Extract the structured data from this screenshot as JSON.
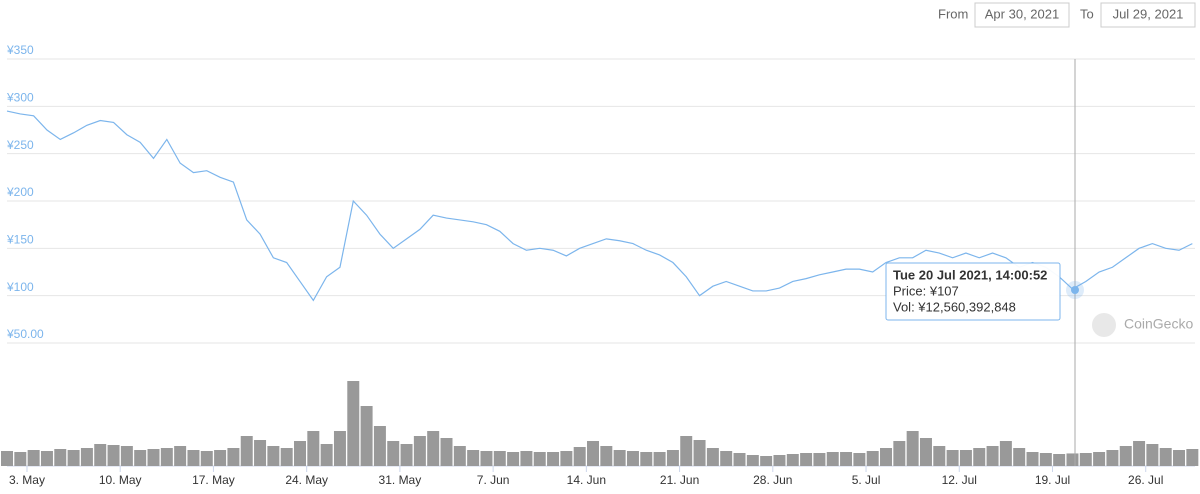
{
  "controls": {
    "from_label": "From",
    "from_date": "Apr 30, 2021",
    "to_label": "To",
    "to_date": "Jul 29, 2021"
  },
  "watermark": "CoinGecko",
  "tooltip": {
    "title": "Tue 20 Jul 2021, 14:00:52",
    "price": "Price: ¥107",
    "volume": "Vol: ¥12,560,392,848"
  },
  "chart_data": {
    "type": "line",
    "xlim": [
      0,
      89.2
    ],
    "xticks": [
      {
        "value": 1.5,
        "label": "3. May"
      },
      {
        "value": 8.5,
        "label": "10. May"
      },
      {
        "value": 15.5,
        "label": "17. May"
      },
      {
        "value": 22.5,
        "label": "24. May"
      },
      {
        "value": 29.5,
        "label": "31. May"
      },
      {
        "value": 36.5,
        "label": "7. Jun"
      },
      {
        "value": 43.5,
        "label": "14. Jun"
      },
      {
        "value": 50.5,
        "label": "21. Jun"
      },
      {
        "value": 57.5,
        "label": "28. Jun"
      },
      {
        "value": 64.5,
        "label": "5. Jul"
      },
      {
        "value": 71.5,
        "label": "12. Jul"
      },
      {
        "value": 78.5,
        "label": "19. Jul"
      },
      {
        "value": 85.5,
        "label": "26. Jul"
      }
    ],
    "ylim": [
      50,
      350
    ],
    "yticks": [
      {
        "value": 350,
        "label": "¥350"
      },
      {
        "value": 300,
        "label": "¥300"
      },
      {
        "value": 250,
        "label": "¥250"
      },
      {
        "value": 200,
        "label": "¥200"
      },
      {
        "value": 150,
        "label": "¥150"
      },
      {
        "value": 100,
        "label": "¥100"
      },
      {
        "value": 50,
        "label": "¥50.00"
      }
    ],
    "y2lim": [
      0,
      100000000000
    ],
    "grid": true,
    "series": [
      {
        "name": "Price",
        "color": "#7cb5ec",
        "values": [
          295,
          292,
          290,
          275,
          265,
          272,
          280,
          285,
          283,
          270,
          262,
          245,
          265,
          240,
          230,
          232,
          225,
          220,
          180,
          165,
          140,
          135,
          115,
          95,
          120,
          130,
          200,
          185,
          165,
          150,
          160,
          170,
          185,
          182,
          180,
          178,
          175,
          168,
          155,
          148,
          150,
          148,
          142,
          150,
          155,
          160,
          158,
          155,
          148,
          143,
          135,
          120,
          100,
          110,
          115,
          110,
          105,
          105,
          108,
          115,
          118,
          122,
          125,
          128,
          128,
          125,
          135,
          140,
          140,
          148,
          145,
          140,
          145,
          140,
          145,
          140,
          130,
          135,
          130,
          120,
          107,
          115,
          125,
          130,
          140,
          150,
          155,
          150,
          148,
          155
        ]
      },
      {
        "name": "Volume",
        "color": "#999999",
        "axis": "y2",
        "values": [
          15000000000.0,
          14000000000.0,
          16000000000.0,
          15000000000.0,
          17000000000.0,
          16000000000.0,
          18000000000.0,
          22000000000.0,
          21000000000.0,
          20000000000.0,
          16000000000.0,
          17000000000.0,
          18000000000.0,
          20000000000.0,
          16000000000.0,
          15000000000.0,
          16000000000.0,
          18000000000.0,
          30000000000.0,
          26000000000.0,
          20000000000.0,
          18000000000.0,
          25000000000.0,
          35000000000.0,
          22000000000.0,
          35000000000.0,
          85000000000.0,
          60000000000.0,
          40000000000.0,
          25000000000.0,
          22000000000.0,
          30000000000.0,
          35000000000.0,
          28000000000.0,
          20000000000.0,
          16000000000.0,
          15000000000.0,
          15000000000.0,
          14000000000.0,
          15000000000.0,
          14000000000.0,
          14000000000.0,
          15000000000.0,
          19000000000.0,
          25000000000.0,
          20000000000.0,
          16000000000.0,
          15000000000.0,
          14000000000.0,
          14000000000.0,
          16000000000.0,
          30000000000.0,
          26000000000.0,
          18000000000.0,
          15000000000.0,
          13000000000.0,
          11000000000.0,
          10000000000.0,
          11000000000.0,
          12000000000.0,
          13000000000.0,
          13000000000.0,
          14000000000.0,
          14000000000.0,
          13000000000.0,
          15000000000.0,
          18000000000.0,
          25000000000.0,
          35000000000.0,
          28000000000.0,
          20000000000.0,
          16000000000.0,
          16000000000.0,
          18000000000.0,
          20000000000.0,
          25000000000.0,
          18000000000.0,
          14000000000.0,
          13000000000.0,
          12000000000.0,
          12560000000.0,
          13000000000.0,
          14000000000.0,
          16000000000.0,
          20000000000.0,
          25000000000.0,
          22000000000.0,
          18000000000.0,
          16000000000.0,
          17000000000.0
        ]
      }
    ]
  }
}
